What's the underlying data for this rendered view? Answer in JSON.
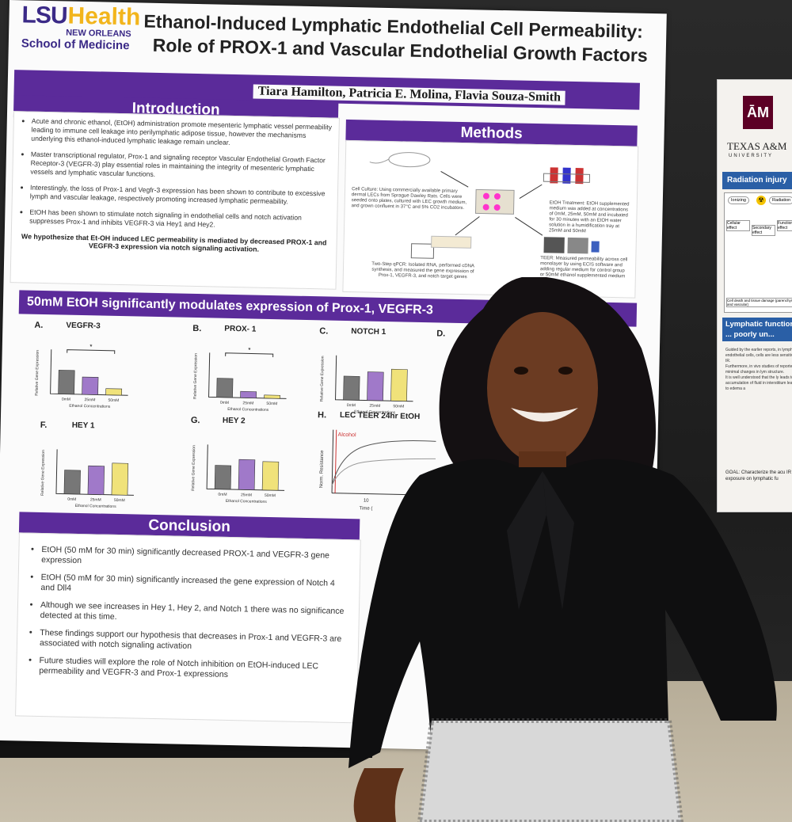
{
  "poster": {
    "logo": {
      "lsu": "LSU",
      "health": "Health",
      "new_orleans": "NEW ORLEANS",
      "school": "School of Medicine"
    },
    "title_line1": "Ethanol-Induced Lymphatic Endothelial Cell Permeability:",
    "title_line2": "Role of PROX-1 and Vascular Endothelial Growth Factors",
    "authors": "Tiara Hamilton, Patricia E. Molina, Flavia Souza-Smith",
    "introduction": {
      "heading": "Introduction",
      "bullets": [
        "Acute and chronic ethanol, (EtOH) administration promote mesenteric lymphatic vessel permeability leading to immune cell leakage into perilymphatic adipose tissue, however the mechanisms underlying this ethanol-induced lymphatic leakage remain unclear.",
        "Master transcriptional regulator, Prox-1 and signaling receptor Vascular Endothelial Growth Factor Receptor-3 (VEGFR-3) play essential roles in maintaining the integrity of mesenteric lymphatic vessels and lymphatic vascular functions.",
        "Interestingly, the loss of Prox-1 and Vegfr-3 expression has been shown to contribute to excessive lymph and vascular leakage, respectively promoting increased lymphatic permeability.",
        "EtOH has been shown to stimulate notch signaling in endothelial cells and notch activation suppresses Prox-1 and inhibits VEGFR-3 via Hey1 and Hey2."
      ],
      "hypothesis": "We hypothesize that Et-OH induced LEC permeability is mediated by decreased PROX-1 and VEGFR-3 expression via notch signaling activation."
    },
    "methods": {
      "heading": "Methods",
      "cell_culture": "Cell Culture: Using commercially available primary dermal LECs from Sprague Dawley Rats. Cells were seeded onto plates, cultured with LEC growth medium, and grown confluent in 37°C and 5% CO2 incubators.",
      "etoh_treatment": "EtOH Treatment: EtOH supplemented medium was added at concentrations of 0mM, 25mM, 50mM and incubated for 30 minutes with an EtOH water solution in a humidification tray at 25mM and 50mM",
      "qpcr": "Two-Step qPCR: Isolated RNA, performed cDNA synthesis, and measured the gene expression of Prox-1, VEGFR-3, and notch target genes",
      "teer": "TEER: Measured permeability across cell monolayer by using ECIS software and adding regular medium for control group or 50mM ethanol supplemented medium"
    },
    "results": {
      "heading": "50mM EtOH significantly modulates expression of  Prox-1, VEGFR-3",
      "heading_tail": "ng genes",
      "y_axis_label": "Relative Gene Expression",
      "x_axis_label": "Ethanol Concentrations",
      "categories": [
        "0mM",
        "25mM",
        "50mM"
      ],
      "panels": [
        {
          "letter": "A.",
          "name": "VEGFR-3",
          "sig": "*"
        },
        {
          "letter": "B.",
          "name": "PROX- 1",
          "sig": "*"
        },
        {
          "letter": "C.",
          "name": "NOTCH 1",
          "sig": ""
        },
        {
          "letter": "D.",
          "name": "",
          "sig": ""
        },
        {
          "letter": "F.",
          "name": "HEY 1",
          "sig": ""
        },
        {
          "letter": "G.",
          "name": "HEY 2",
          "sig": ""
        }
      ],
      "teer": {
        "letter": "H.",
        "name": "LEC TEER 24hr EtOH",
        "y_axis_label": "Norm. Resistance",
        "annotation": "Alcohol",
        "x_tick": "10",
        "x_label": "Time ("
      }
    },
    "conclusion": {
      "heading": "Conclusion",
      "bullets": [
        "EtOH (50 mM for 30 min) significantly decreased PROX-1 and VEGFR-3 gene expression",
        "EtOH (50 mM for 30 min) significantly  increased the gene expression of Notch 4 and Dll4",
        "Although we see increases in Hey 1, Hey 2, and Notch 1 there was no significance detected at this time.",
        "These findings support our hypothesis that decreases in Prox-1 and VEGFR-3 are associated with notch signaling activation",
        "Future studies will explore the role of Notch inhibition on EtOH-induced LEC permeability and VEGFR-3 and Prox-1 expressions"
      ]
    }
  },
  "neighbor_poster": {
    "logo": "ĀM",
    "institution": "TEXAS A&M",
    "university": "UNIVERSITY",
    "radiation_heading": "Radiation injury",
    "diagram_labels": [
      "Ionizing",
      "Radiation",
      "Cellular effect",
      "Secondary effect",
      "Functional effect",
      "Cell death and tissue damage (parenchyma and vascular)"
    ],
    "lymphatic_heading": "Lymphatic functional ... poorly un...",
    "bullets": [
      "Guided by the earlier reports, in lymphatic endothelial cells, cells are less sensitive to IR.",
      "Furthermore, in vivo studies of reported minimal changes in lym structure.",
      "It is well understood that the ly leads to accumulation of fluid in interstitium leading to edema a"
    ],
    "goal": "GOAL: Characterize the acu IR exposure on lymphatic fu"
  },
  "colors": {
    "lsu_purple": "#5b2b9a",
    "lsu_gold": "#f2b51c",
    "bar_gray": "#777777",
    "bar_purple": "#a079c9",
    "bar_yellow": "#f0e27a",
    "tamu_maroon": "#5c0025",
    "tamu_blue": "#2a5fa6"
  }
}
